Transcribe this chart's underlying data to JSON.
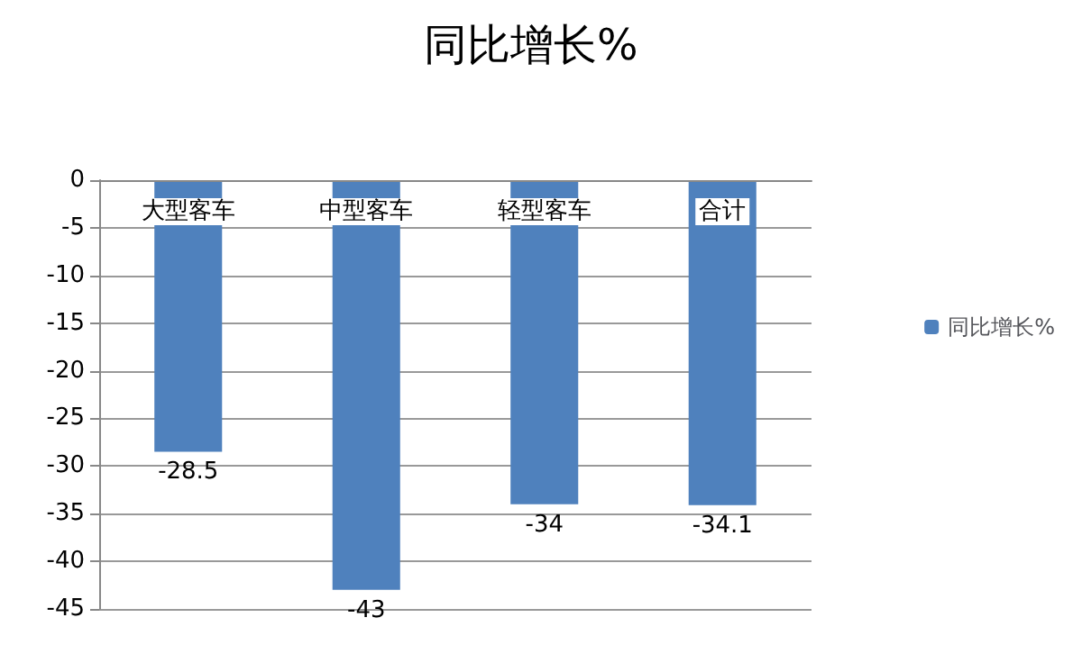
{
  "chart_data": {
    "type": "bar",
    "title": "同比增长%",
    "categories": [
      "大型客车",
      "中型客车",
      "轻型客车",
      "合计"
    ],
    "series": [
      {
        "name": "同比增长%",
        "color": "#4f81bd",
        "values": [
          -28.5,
          -43,
          -34,
          -34.1
        ]
      }
    ],
    "ylim": [
      -45,
      0
    ],
    "yticks": [
      -45,
      -40,
      -35,
      -30,
      -25,
      -20,
      -15,
      -10,
      -5,
      0
    ],
    "grid": "y",
    "legend": "right",
    "data_labels": true
  }
}
